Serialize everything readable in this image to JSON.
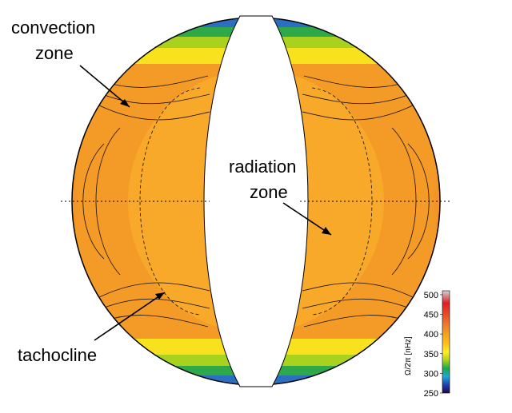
{
  "labels": {
    "convection_line1": "convection",
    "convection_line2": "zone",
    "radiation_line1": "radiation",
    "radiation_line2": "zone",
    "tachocline": "tachocline"
  },
  "colorbar": {
    "title": "Ω/2π [nHz]",
    "min": 250,
    "max": 510,
    "ticks": [
      "500",
      "450",
      "400",
      "350",
      "300",
      "250"
    ],
    "colormap": [
      "#1a0a4e",
      "#1f3fb0",
      "#1ea8d8",
      "#1aa84b",
      "#a8d21e",
      "#ffee22",
      "#ffc21c",
      "#f5a01e",
      "#ee6a2a",
      "#e01e25",
      "#d4d4d4"
    ]
  },
  "colors": {
    "red": "#e5302a",
    "orange": "#f6a425",
    "yellow": "#f7e21d",
    "green": "#2fa84a",
    "blue": "#2a6fc0",
    "navy": "#16205e"
  }
}
